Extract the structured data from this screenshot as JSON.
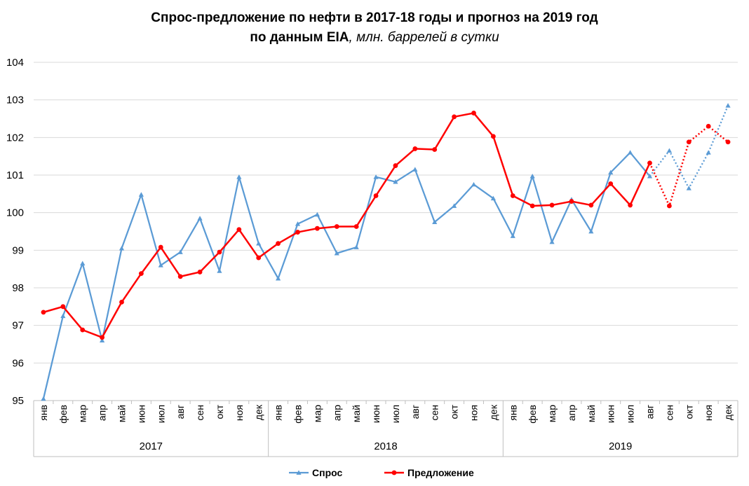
{
  "chart_data": {
    "type": "line",
    "title_line1": "Спрос-предложение по нефти в 2017-18 годы и прогноз на 2019 год",
    "title_line2_bold": "по данным EIA",
    "title_line2_italic": ", млн. баррелей в сутки",
    "ylim": [
      95,
      104
    ],
    "yticks": [
      95,
      96,
      97,
      98,
      99,
      100,
      101,
      102,
      103,
      104
    ],
    "grid": true,
    "legend_position": "bottom",
    "months": [
      "янв",
      "фев",
      "мар",
      "апр",
      "май",
      "июн",
      "июл",
      "авг",
      "сен",
      "окт",
      "ноя",
      "дек"
    ],
    "years": [
      "2017",
      "2018",
      "2019"
    ],
    "forecast_start_index": 32,
    "series": [
      {
        "name": "Спрос",
        "color": "#5b9bd5",
        "marker": "triangle",
        "values": [
          95.05,
          97.25,
          98.65,
          96.6,
          99.05,
          100.48,
          98.6,
          98.95,
          99.85,
          98.45,
          100.95,
          99.18,
          98.25,
          99.7,
          99.95,
          98.92,
          99.08,
          100.95,
          100.82,
          101.15,
          99.75,
          100.18,
          100.75,
          100.38,
          99.38,
          100.97,
          99.22,
          100.35,
          99.5,
          101.07,
          101.6,
          100.97,
          101.65,
          100.65,
          101.6,
          102.85
        ]
      },
      {
        "name": "Предложение",
        "color": "#ff0000",
        "marker": "circle",
        "values": [
          97.35,
          97.5,
          96.88,
          96.68,
          97.62,
          98.38,
          99.08,
          98.3,
          98.42,
          98.95,
          99.55,
          98.8,
          99.18,
          99.48,
          99.58,
          99.63,
          99.63,
          100.45,
          101.25,
          101.7,
          101.68,
          102.55,
          102.65,
          102.03,
          100.45,
          100.18,
          100.2,
          100.3,
          100.2,
          100.77,
          100.2,
          101.32,
          100.18,
          101.88,
          102.3,
          101.88
        ]
      }
    ]
  }
}
